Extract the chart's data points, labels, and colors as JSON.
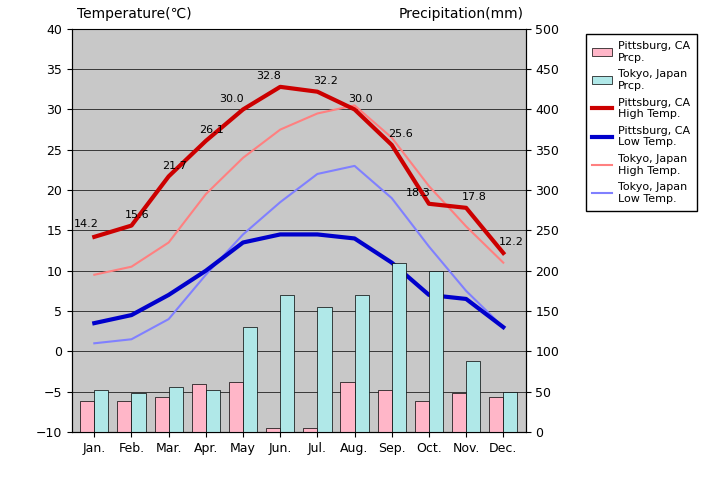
{
  "months": [
    "Jan.",
    "Feb.",
    "Mar.",
    "Apr.",
    "May",
    "Jun.",
    "Jul.",
    "Aug.",
    "Sep.",
    "Oct.",
    "Nov.",
    "Dec."
  ],
  "pittsburg_high": [
    14.2,
    15.6,
    21.7,
    26.1,
    30.0,
    32.8,
    32.2,
    30.0,
    25.6,
    18.3,
    17.8,
    12.2
  ],
  "pittsburg_low": [
    3.5,
    4.5,
    7.0,
    10.0,
    13.5,
    14.5,
    14.5,
    14.0,
    11.0,
    7.0,
    6.5,
    3.0
  ],
  "tokyo_high": [
    9.5,
    10.5,
    13.5,
    19.5,
    24.0,
    27.5,
    29.5,
    30.5,
    26.5,
    20.5,
    15.5,
    11.0
  ],
  "tokyo_low": [
    1.0,
    1.5,
    4.0,
    9.5,
    14.5,
    18.5,
    22.0,
    23.0,
    19.0,
    13.0,
    7.5,
    3.0
  ],
  "pittsburg_prcp_mm": [
    38,
    38,
    44,
    60,
    62,
    5,
    5,
    62,
    52,
    38,
    48,
    44
  ],
  "tokyo_prcp_mm": [
    52,
    48,
    56,
    52,
    130,
    170,
    155,
    170,
    210,
    200,
    88,
    50
  ],
  "temp_ylim": [
    -10,
    40
  ],
  "prcp_ylim": [
    0,
    500
  ],
  "plot_bg_color": "#c8c8c8",
  "fig_bg_color": "#ffffff",
  "pittsburg_high_color": "#cc0000",
  "pittsburg_low_color": "#0000cc",
  "tokyo_high_color": "#ff8080",
  "tokyo_low_color": "#8080ff",
  "pittsburg_prcp_color": "#ffb6c8",
  "tokyo_prcp_color": "#b0e8e8",
  "ylabel_left": "Temperature(℃)",
  "ylabel_right": "Precipitation(mm)",
  "gridline_color": "#000000",
  "gridline_lw": 0.5,
  "pittsburg_high_lw": 3.0,
  "pittsburg_low_lw": 3.0,
  "tokyo_high_lw": 1.5,
  "tokyo_low_lw": 1.5,
  "bar_width": 0.38,
  "label_fontsize": 8,
  "axis_fontsize": 9,
  "legend_fontsize": 8
}
